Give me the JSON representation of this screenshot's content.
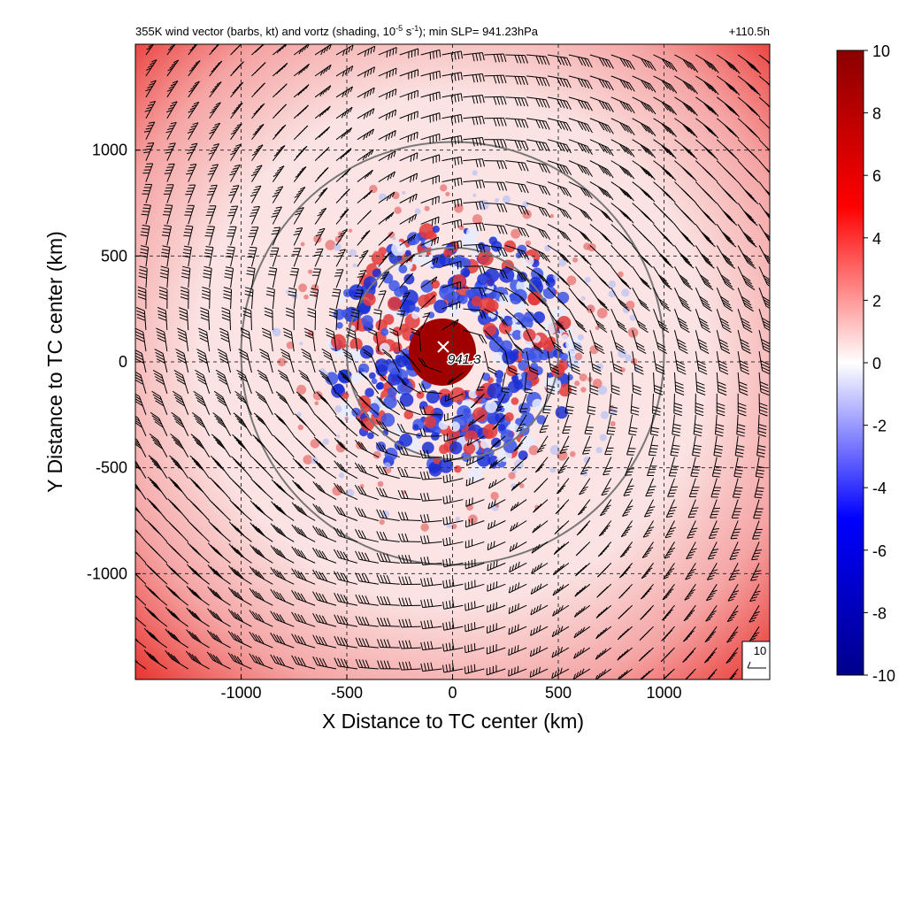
{
  "chart_data": {
    "type": "heatmap",
    "title_left": "355K wind vector (barbs, kt) and vortz (shading, 10",
    "title_exp1": "-5",
    "title_mid": " s",
    "title_exp2": "-1",
    "title_end": "); min SLP= 941.23hPa",
    "title_right": "+110.5h",
    "xlabel": "X Distance to TC center (km)",
    "ylabel": "Y Distance to TC center (km)",
    "xlim": [
      -1500,
      1500
    ],
    "ylim": [
      -1500,
      1500
    ],
    "grid": true,
    "x_ticks": [
      -1000,
      -500,
      0,
      500,
      1000
    ],
    "y_ticks": [
      1000,
      500,
      0,
      -500,
      -1000
    ],
    "x_tick_labels": [
      "-1000",
      "-500",
      "0",
      "500",
      "1000"
    ],
    "y_tick_labels": [
      "1000",
      "500",
      "0",
      "-500",
      "-1000"
    ],
    "colorbar": {
      "min": -10,
      "max": 10,
      "ticks": [
        10,
        8,
        6,
        4,
        2,
        0,
        -2,
        -4,
        -6,
        -8,
        -10
      ],
      "tick_labels": [
        "10",
        "8",
        "6",
        "4",
        "2",
        "0",
        "-2",
        "-4",
        "-6",
        "-8",
        "-10"
      ],
      "colors": [
        "#00008b",
        "#0000ff",
        "#ffffff",
        "#ff0000",
        "#8b0000"
      ]
    },
    "center_label": "941.3",
    "center_xy": [
      0,
      40
    ],
    "range_circles_km": [
      500,
      1000
    ],
    "reference_barb_label": "10"
  }
}
